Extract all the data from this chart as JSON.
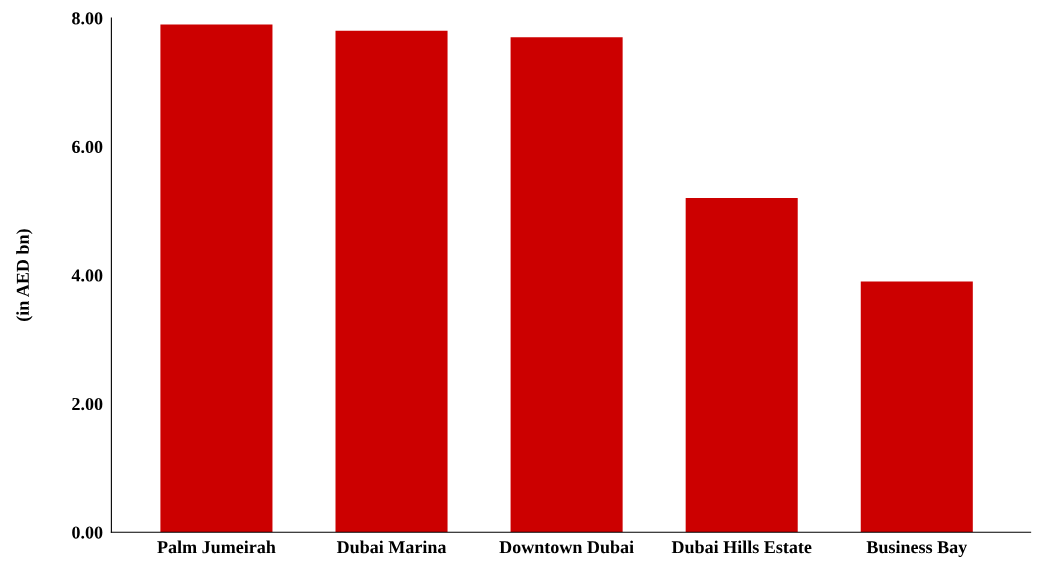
{
  "chart_data": {
    "type": "bar",
    "ylabel": "(in AED bn)",
    "categories": [
      "Palm Jumeirah",
      "Dubai Marina",
      "Downtown Dubai",
      "Dubai Hills Estate",
      "Business Bay"
    ],
    "values": [
      7.9,
      7.8,
      7.7,
      5.2,
      3.9
    ],
    "color": "#cc0000",
    "ylim": [
      0,
      8
    ],
    "yticks": [
      {
        "value": 0,
        "label": "0.00"
      },
      {
        "value": 2,
        "label": "2.00"
      },
      {
        "value": 4,
        "label": "4.00"
      },
      {
        "value": 6,
        "label": "6.00"
      },
      {
        "value": 8,
        "label": "8.00"
      }
    ],
    "grid": false,
    "legend": false
  }
}
